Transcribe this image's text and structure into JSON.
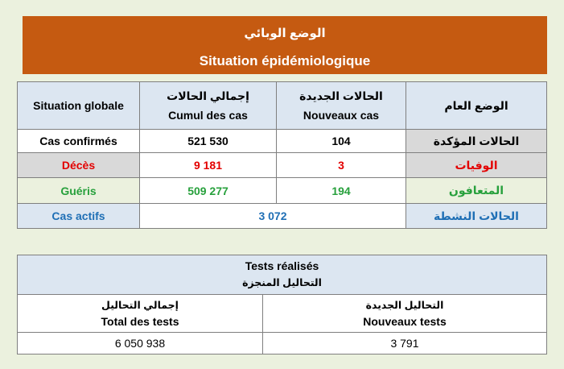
{
  "header": {
    "title_ar": "الوضع الوبائي",
    "title_fr": "Situation épidémiologique"
  },
  "situation": {
    "col_global": "Situation globale",
    "col_cumul_ar": "إجمالي الحالات",
    "col_cumul_fr": "Cumul des cas",
    "col_new_ar": "الحالات الجديدة",
    "col_new_fr": "Nouveaux cas",
    "col_general_ar": "الوضع العام",
    "rows": {
      "confirmed": {
        "fr": "Cas confirmés",
        "cumul": "521 530",
        "new": "104",
        "ar": "الحالات المؤكدة"
      },
      "deaths": {
        "fr": "Décès",
        "cumul": "9 181",
        "new": "3",
        "ar": "الوفيات"
      },
      "recovered": {
        "fr": "Guéris",
        "cumul": "509 277",
        "new": "194",
        "ar": "المتعافون"
      },
      "active": {
        "fr": "Cas actifs",
        "value": "3 072",
        "ar": "الحالات النشطة"
      }
    }
  },
  "tests": {
    "title_fr": "Tests réalisés",
    "title_ar": "التحاليل المنجزة",
    "total_ar": "إجمالي التحاليل",
    "total_fr": "Total des tests",
    "new_ar": "التحاليل الجديدة",
    "new_fr": "Nouveaux tests",
    "total_value": "6 050 938",
    "new_value": "3 791"
  },
  "colors": {
    "banner": "#c55a11",
    "page_bg": "#ebf1de",
    "header_bg": "#dce6f1",
    "deaths": "#e30000",
    "recovered": "#27a03c",
    "active": "#1f6fb5"
  }
}
